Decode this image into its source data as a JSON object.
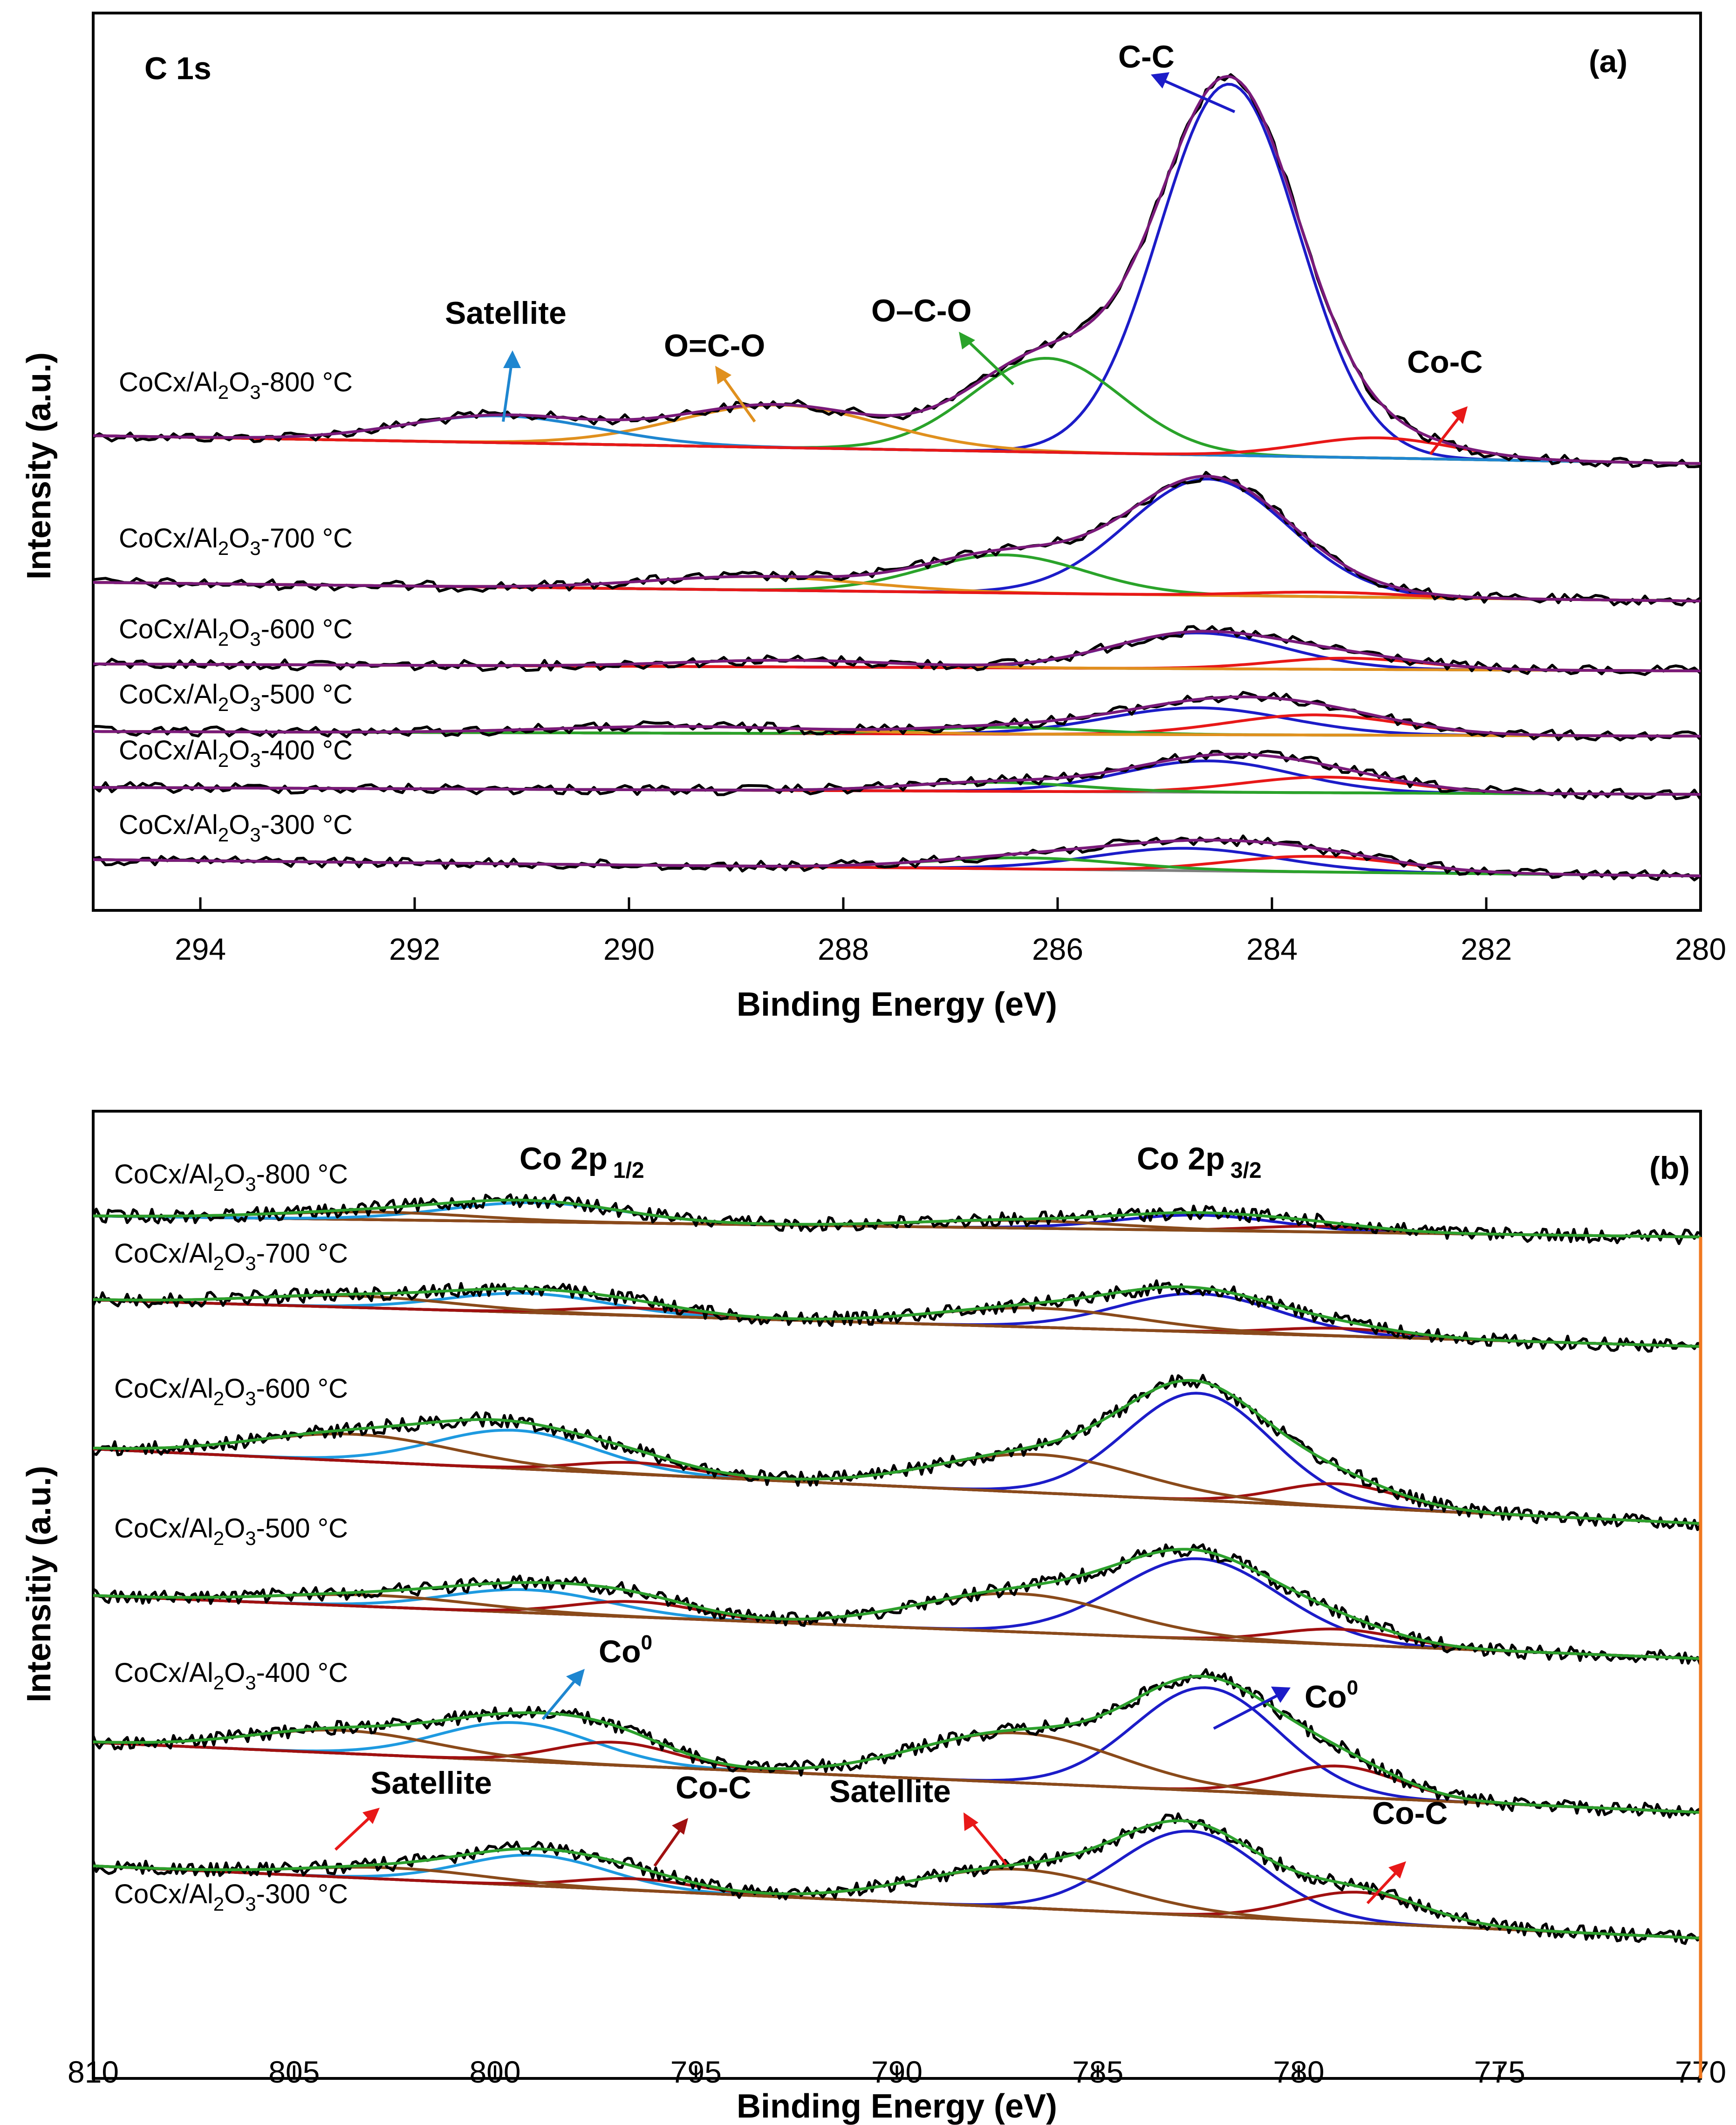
{
  "colors": {
    "raw": "#000000",
    "envelope_a": "#7a1a7a",
    "envelope_b": "#2ca02c",
    "baseline_a": "#808080",
    "baseline_b": "#f07820",
    "cc": "#1c1cc8",
    "coc": "#e81818",
    "ocdo": "#2aa32a",
    "odco": "#e0901e",
    "satellite_a": "#1e86d0",
    "co0_b": "#1c1cc8",
    "co0_b_alt": "#1e9ae0",
    "cocarbide_b": "#a01010",
    "sat_b": "#8a4a1a"
  },
  "chart_data": [
    {
      "id": "a",
      "type": "line",
      "panel_label": "(a)",
      "title": "C 1s",
      "xlabel": "Binding Energy (eV)",
      "ylabel": "Intensity (a.u.)",
      "xlim": [
        295,
        280
      ],
      "xticks": [
        294,
        292,
        290,
        288,
        286,
        284,
        282,
        280
      ],
      "series": [
        {
          "name": "CoCx/Al₂O₃-800 °C",
          "baseline": [
            0.16,
            0.135
          ],
          "base": 0.0,
          "peaks": [
            {
              "name": "C-C",
              "center": 284.4,
              "height": 0.83,
              "width": 0.65,
              "color": "cc"
            },
            {
              "name": "O–C-O",
              "center": 286.1,
              "height": 0.21,
              "width": 0.7,
              "color": "ocdo"
            },
            {
              "name": "O=C-O",
              "center": 288.6,
              "height": 0.095,
              "width": 0.95,
              "color": "odco"
            },
            {
              "name": "Satellite",
              "center": 291.2,
              "height": 0.06,
              "width": 0.9,
              "color": "satellite_a"
            },
            {
              "name": "Co-C",
              "center": 283.0,
              "height": 0.045,
              "width": 0.7,
              "color": "coc"
            }
          ]
        },
        {
          "name": "CoCx/Al₂O₃-700 °C",
          "baseline": [
            0.14,
            0.12
          ],
          "base": 0.0,
          "peaks": [
            {
              "name": "C-C",
              "center": 284.6,
              "height": 0.26,
              "width": 0.75,
              "color": "cc"
            },
            {
              "name": "O–C-O",
              "center": 286.5,
              "height": 0.085,
              "width": 0.75,
              "color": "ocdo"
            },
            {
              "name": "O=C-O",
              "center": 288.8,
              "height": 0.03,
              "width": 1.0,
              "color": "odco"
            },
            {
              "name": "Co-C",
              "center": 283.5,
              "height": 0.01,
              "width": 0.7,
              "color": "coc"
            }
          ]
        },
        {
          "name": "CoCx/Al₂O₃-600 °C",
          "baseline": [
            0.11,
            0.1
          ],
          "base": 0.0,
          "peaks": [
            {
              "name": "C-C",
              "center": 284.7,
              "height": 0.08,
              "width": 0.8,
              "color": "cc"
            },
            {
              "name": "Co-C",
              "center": 283.3,
              "height": 0.025,
              "width": 0.7,
              "color": "coc"
            },
            {
              "name": "O=C-O",
              "center": 288.5,
              "height": 0.015,
              "width": 1.0,
              "color": "odco"
            }
          ]
        },
        {
          "name": "CoCx/Al₂O₃-500 °C",
          "baseline": [
            0.11,
            0.1
          ],
          "base": 0.0,
          "peaks": [
            {
              "name": "C-C",
              "center": 284.7,
              "height": 0.06,
              "width": 0.85,
              "color": "cc"
            },
            {
              "name": "Co-C",
              "center": 283.6,
              "height": 0.045,
              "width": 0.8,
              "color": "coc"
            },
            {
              "name": "O–C-O",
              "center": 286.5,
              "height": 0.015,
              "width": 0.8,
              "color": "ocdo"
            },
            {
              "name": "O=C-O",
              "center": 289.5,
              "height": 0.015,
              "width": 1.2,
              "color": "odco"
            }
          ]
        },
        {
          "name": "CoCx/Al₂O₃-400 °C",
          "baseline": [
            0.1,
            0.09
          ],
          "base": 0.0,
          "peaks": [
            {
              "name": "C-C",
              "center": 284.6,
              "height": 0.07,
              "width": 0.8,
              "color": "cc"
            },
            {
              "name": "Co-C",
              "center": 283.5,
              "height": 0.035,
              "width": 0.75,
              "color": "coc"
            },
            {
              "name": "O–C-O",
              "center": 286.6,
              "height": 0.02,
              "width": 0.8,
              "color": "ocdo"
            }
          ]
        },
        {
          "name": "CoCx/Al₂O₃-300 °C",
          "baseline": [
            0.1,
            0.09
          ],
          "base": 0.0,
          "peaks": [
            {
              "name": "C-C",
              "center": 284.8,
              "height": 0.05,
              "width": 0.85,
              "color": "cc"
            },
            {
              "name": "Co-C",
              "center": 283.6,
              "height": 0.035,
              "width": 0.8,
              "color": "coc"
            },
            {
              "name": "O–C-O",
              "center": 286.3,
              "height": 0.025,
              "width": 0.9,
              "color": "ocdo"
            }
          ]
        }
      ],
      "annotations": [
        "C-C",
        "Satellite",
        "O=C-O",
        "O–C-O",
        "Co-C"
      ]
    },
    {
      "id": "b",
      "type": "line",
      "panel_label": "(b)",
      "title_left": "Co 2p",
      "title_left_sub": "1/2",
      "title_right": "Co 2p",
      "title_right_sub": "3/2",
      "xlabel": "Binding Energy (eV)",
      "ylabel": "Intensitiy (a.u.)",
      "xlim": [
        810,
        770
      ],
      "xticks": [
        810,
        805,
        800,
        795,
        790,
        785,
        780,
        775,
        770
      ],
      "series": [
        {
          "name": "CoCx/Al₂O₃-800 °C",
          "peaks": [
            {
              "name": "Co0 2p3/2",
              "center": 782.5,
              "height": 0.04,
              "width": 2.0,
              "color": "co0_b"
            },
            {
              "name": "Co-C 2p3/2",
              "center": 779.5,
              "height": 0.015,
              "width": 1.6,
              "color": "cocarbide_b"
            },
            {
              "name": "Sat 2p3/2",
              "center": 787.0,
              "height": 0.02,
              "width": 2.5,
              "color": "sat_b"
            },
            {
              "name": "Co0 2p1/2",
              "center": 799.0,
              "height": 0.05,
              "width": 2.2,
              "color": "co0_b_alt"
            },
            {
              "name": "Sat 2p1/2",
              "center": 803.0,
              "height": 0.02,
              "width": 2.5,
              "color": "sat_b"
            }
          ]
        },
        {
          "name": "CoCx/Al₂O₃-700 °C",
          "peaks": [
            {
              "name": "Co0 2p3/2",
              "center": 782.5,
              "height": 0.1,
              "width": 2.0,
              "color": "co0_b"
            },
            {
              "name": "Co-C 2p3/2",
              "center": 779.0,
              "height": 0.02,
              "width": 1.6,
              "color": "cocarbide_b"
            },
            {
              "name": "Sat 2p3/2",
              "center": 786.5,
              "height": 0.05,
              "width": 2.5,
              "color": "sat_b"
            },
            {
              "name": "Co0 2p1/2",
              "center": 799.2,
              "height": 0.05,
              "width": 2.0,
              "color": "co0_b_alt"
            },
            {
              "name": "Co-C 2p1/2",
              "center": 796.5,
              "height": 0.02,
              "width": 1.6,
              "color": "cocarbide_b"
            },
            {
              "name": "Sat 2p1/2",
              "center": 803.5,
              "height": 0.03,
              "width": 2.5,
              "color": "sat_b"
            }
          ]
        },
        {
          "name": "CoCx/Al₂O₃-600 °C",
          "peaks": [
            {
              "name": "Co0 2p3/2",
              "center": 782.5,
              "height": 0.28,
              "width": 1.8,
              "color": "co0_b"
            },
            {
              "name": "Co-C 2p3/2",
              "center": 779.0,
              "height": 0.06,
              "width": 1.5,
              "color": "cocarbide_b"
            },
            {
              "name": "Sat 2p3/2",
              "center": 786.5,
              "height": 0.1,
              "width": 2.5,
              "color": "sat_b"
            },
            {
              "name": "Co0 2p1/2",
              "center": 799.5,
              "height": 0.1,
              "width": 2.0,
              "color": "co0_b_alt"
            },
            {
              "name": "Co-C 2p1/2",
              "center": 796.5,
              "height": 0.03,
              "width": 1.5,
              "color": "cocarbide_b"
            },
            {
              "name": "Sat 2p1/2",
              "center": 803.5,
              "height": 0.07,
              "width": 2.5,
              "color": "sat_b"
            }
          ]
        },
        {
          "name": "CoCx/Al₂O₃-500 °C",
          "peaks": [
            {
              "name": "Co0 2p3/2",
              "center": 782.5,
              "height": 0.21,
              "width": 2.0,
              "color": "co0_b"
            },
            {
              "name": "Co-C 2p3/2",
              "center": 779.0,
              "height": 0.04,
              "width": 1.5,
              "color": "cocarbide_b"
            },
            {
              "name": "Sat 2p3/2",
              "center": 787.0,
              "height": 0.1,
              "width": 2.5,
              "color": "sat_b"
            },
            {
              "name": "Co0 2p1/2",
              "center": 799.2,
              "height": 0.06,
              "width": 2.0,
              "color": "co0_b_alt"
            },
            {
              "name": "Co-C 2p1/2",
              "center": 796.5,
              "height": 0.04,
              "width": 1.6,
              "color": "cocarbide_b"
            },
            {
              "name": "Sat 2p1/2",
              "center": 803.0,
              "height": 0.03,
              "width": 2.5,
              "color": "sat_b"
            }
          ]
        },
        {
          "name": "CoCx/Al₂O₃-400 °C",
          "peaks": [
            {
              "name": "Co0 2p3/2",
              "center": 782.3,
              "height": 0.27,
              "width": 1.8,
              "color": "co0_b"
            },
            {
              "name": "Co-C 2p3/2",
              "center": 779.0,
              "height": 0.08,
              "width": 1.5,
              "color": "cocarbide_b"
            },
            {
              "name": "Sat 2p3/2",
              "center": 787.0,
              "height": 0.13,
              "width": 2.5,
              "color": "sat_b"
            },
            {
              "name": "Co0 2p1/2",
              "center": 799.5,
              "height": 0.1,
              "width": 1.9,
              "color": "co0_b_alt"
            },
            {
              "name": "Co-C 2p1/2",
              "center": 797.0,
              "height": 0.06,
              "width": 1.5,
              "color": "cocarbide_b"
            },
            {
              "name": "Sat 2p1/2",
              "center": 803.8,
              "height": 0.06,
              "width": 2.3,
              "color": "sat_b"
            }
          ]
        },
        {
          "name": "CoCx/Al₂O₃-300 °C",
          "peaks": [
            {
              "name": "Co0 2p3/2",
              "center": 782.7,
              "height": 0.22,
              "width": 1.8,
              "color": "co0_b"
            },
            {
              "name": "Co-C 2p3/2",
              "center": 778.5,
              "height": 0.08,
              "width": 1.6,
              "color": "cocarbide_b"
            },
            {
              "name": "Sat 2p3/2",
              "center": 787.0,
              "height": 0.1,
              "width": 2.5,
              "color": "sat_b"
            },
            {
              "name": "Co0 2p1/2",
              "center": 799.0,
              "height": 0.08,
              "width": 1.8,
              "color": "co0_b_alt"
            },
            {
              "name": "Co-C 2p1/2",
              "center": 796.5,
              "height": 0.03,
              "width": 1.5,
              "color": "cocarbide_b"
            },
            {
              "name": "Sat 2p1/2",
              "center": 802.5,
              "height": 0.03,
              "width": 2.3,
              "color": "sat_b"
            }
          ]
        }
      ],
      "annotations": [
        "Co",
        "Co",
        "Satellite",
        "Co-C",
        "Satellite",
        "Co-C"
      ],
      "co0_sup": "0"
    }
  ],
  "labels": {
    "a_title": "C 1s",
    "a_panel": "(a)",
    "b_panel": "(b)",
    "b_co_left": "Co 2p",
    "b_co_left_sub": "1/2",
    "b_co_right": "Co 2p",
    "b_co_right_sub": "3/2",
    "a_xlabel": "Binding Energy (eV)",
    "b_xlabel": "Binding Energy (eV)",
    "a_ylabel": "Intensity (a.u.)",
    "b_ylabel": "Intensitiy (a.u.)",
    "a_ann_cc": "C-C",
    "a_ann_sat": "Satellite",
    "a_ann_odco": "O=C-O",
    "a_ann_ocdo": "O–C-O",
    "a_ann_coc": "Co-C",
    "b_ann_co0a": "Co",
    "b_ann_co0b": "Co",
    "b_ann_sup": "0",
    "b_ann_sat1": "Satellite",
    "b_ann_coc1": "Co-C",
    "b_ann_sat2": "Satellite",
    "b_ann_coc2": "Co-C"
  },
  "series_labels": {
    "prefix": "CoCx/Al",
    "sub": "2",
    "mid": "O",
    "sub2": "3",
    "a": [
      "-800 °C",
      "-700 °C",
      "-600 °C",
      "-500 °C",
      "-400 °C",
      "-300 °C"
    ],
    "b": [
      "-800 °C",
      "-700 °C",
      "-600 °C",
      "-500 °C",
      "-400 °C",
      "-300 °C"
    ]
  }
}
